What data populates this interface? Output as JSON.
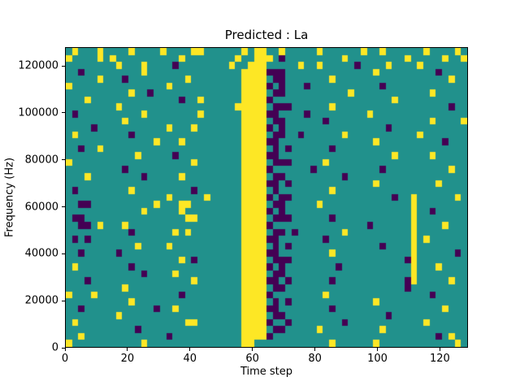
{
  "chart_data": {
    "type": "heatmap",
    "title": "Predicted : La",
    "xlabel": "Time step",
    "ylabel": "Frequency (Hz)",
    "xlim": [
      0,
      129
    ],
    "ylim": [
      0,
      128000
    ],
    "x_ticks": [
      0,
      20,
      40,
      60,
      80,
      100,
      120
    ],
    "y_ticks": [
      0,
      20000,
      40000,
      60000,
      80000,
      100000,
      120000
    ],
    "colormap": "viridis",
    "legend": "none",
    "grid": {
      "shape": {
        "rows": 43,
        "cols": 64
      },
      "cell_time_steps": 2,
      "cell_freq_hz": 2977,
      "encoding": {
        ".": "mid",
        "y": "high",
        "p": "low"
      },
      "colors": {
        "mid": "#21918c",
        "high": "#fde725",
        "low": "#440154"
      },
      "rows_top_to_bottom": [
        [
          ".y...y..",
          "..y....y",
          "....yy..",
          "....y.yy",
          "..y.....",
          "y......y",
          "..y.....",
          ".y....y."
        ],
        [
          "y....y.y",
          "........",
          "..y.....",
          "...y..yy",
          "y.p.....",
          "....y...",
          "......y.",
          "....y..y"
        ],
        [
          "........",
          "y...y...",
          ".p......",
          "..y..yyy",
          ".....y..",
          "y.....p.",
          "...y....",
          "y......."
        ],
        [
          "..p.....",
          "....y...",
          "........",
          "....yyyy",
          "ppp.....",
          "........",
          ".y......",
          "...p...."
        ],
        [
          ".....y..",
          ".p......",
          "...y....",
          "....yyyy",
          ".pp.....",
          "..y.....",
          "........",
          ".....y.."
        ],
        [
          "y.......",
          "........",
          "y.......",
          "....yyyy",
          "p.p...p.",
          "........",
          "..p.....",
          "........"
        ],
        [
          "........",
          "..y..p..",
          "........",
          "....yyyy",
          ".pp.....",
          ".....y..",
          "........",
          "..y....."
        ],
        [
          "...y....",
          "........",
          "..p..y..",
          "....yyyy",
          "p.......",
          "........",
          "....y...",
          "........"
        ],
        [
          "........",
          "y.......",
          "........",
          "...yyyyy",
          ".ppp....",
          "..y.....",
          "........",
          ".....p.."
        ],
        [
          ".p......",
          "....y...",
          ".....y..",
          "....yyyy",
          "pp....p.",
          "........",
          "y.......",
          "........"
        ],
        [
          "........",
          ".y......",
          "........",
          "....yyyy",
          ".pp.....",
          ".p......",
          "........",
          "..y....y"
        ],
        [
          "....p...",
          "........",
          "y...y...",
          "....yyyy",
          "p.p.....",
          "........",
          "...p....",
          "........"
        ],
        [
          ".y......",
          "..p.....",
          "........",
          "....yyyy",
          ".pp..p..",
          "....y...",
          "........",
          "y......."
        ],
        [
          "........",
          "......y.",
          "..y.....",
          "....yyyy",
          "pp......",
          "........",
          ".y......",
          "....p..."
        ],
        [
          "..p..y..",
          "........",
          "........",
          "....yyyy",
          ".p.p....",
          "..p.....",
          "........",
          "........"
        ],
        [
          "........",
          "...y....",
          ".p......",
          "....yyyy",
          "pp......",
          "........",
          "....y...",
          "..y....."
        ],
        [
          "y.......",
          "........",
          "....y...",
          "....yyyy",
          ".ppp....",
          ".y......",
          "........",
          "........"
        ],
        [
          "........",
          ".p......",
          "........",
          "....yyyy",
          "p......p",
          "........",
          "..p.....",
          ".....y.."
        ],
        [
          "...y....",
          "....p...",
          "..y.....",
          "....yyyy",
          ".pp.....",
          "....p...",
          "........",
          "........"
        ],
        [
          "........",
          "........",
          "........",
          "....yyyy",
          "pp.p....",
          "........",
          ".y......",
          "...y...."
        ],
        [
          ".p......",
          "..y.....",
          "....p...",
          "....yyyy",
          ".p......",
          "..y.....",
          "........",
          "........"
        ],
        [
          "........",
          "........",
          "y.....y.",
          "....yyyy",
          "p.pp....",
          "........",
          "....p..y",
          "......y."
        ],
        [
          "..pp....",
          "......y.",
          "..yy....",
          "....yyyy",
          ".pp.....",
          "y.......",
          ".......y",
          "........"
        ],
        [
          "........",
          "....y...",
          "..y.....",
          "....yyyy",
          "p.p.....",
          "........",
          ".......y",
          "..p....."
        ],
        [
          ".pp.....",
          "........",
          "...yy...",
          "....yyyy",
          ".ppp....",
          "..p.....",
          ".......y",
          "........"
        ],
        [
          "..pp.y..",
          ".y......",
          "........",
          "....yyyy",
          "p.......",
          "........",
          "p......y",
          "....y..."
        ],
        [
          "........",
          "..p.....",
          ".y.y....",
          "....yyyy",
          ".pp.p...",
          "....y...",
          ".......y",
          "........"
        ],
        [
          ".p.p....",
          "........",
          "........",
          "....yyyy",
          "pp......",
          ".p......",
          ".......y",
          ".y......"
        ],
        [
          "........",
          "...y....",
          "y.......",
          "....yyyy",
          ".p.p....",
          "........",
          "..p....y",
          "........"
        ],
        [
          "..p.....",
          "p.......",
          "........",
          "....yyyy",
          "pp......",
          "..y.....",
          ".......y",
          "......p."
        ],
        [
          "........",
          "........",
          "..y.p...",
          "....yyyy",
          ".ppp....",
          "........",
          "......py",
          "........"
        ],
        [
          ".y......",
          "..p.....",
          "........",
          "....yyyy",
          "p.p.....",
          "...p....",
          ".......y",
          "...y...."
        ],
        [
          "........",
          "....p...",
          ".y......",
          "....yyyy",
          ".pp.....",
          "........",
          ".......y",
          "........"
        ],
        [
          "...p....",
          "........",
          "....y...",
          "....yyyy",
          "pp.p....",
          "..p.....",
          "......py",
          ".....y.."
        ],
        [
          "........",
          ".y......",
          "........",
          "....yyyy",
          ".pp.....",
          "........",
          "......p.",
          "........"
        ],
        [
          "y...y...",
          "........",
          "..p.....",
          "....yyyy",
          "p.......",
          ".y......",
          "........",
          "..p....."
        ],
        [
          "........",
          "..y.....",
          "........",
          "....yyyy",
          ".p.p....",
          "........",
          ".y......",
          "........"
        ],
        [
          "..p.....",
          "......p.",
          ".y......",
          "....yyyy",
          "pp......",
          "..p.....",
          "........",
          "....y..."
        ],
        [
          "........",
          "y.......",
          "........",
          "....yyyy",
          ".pp.....",
          "........",
          "...p....",
          "........"
        ],
        [
          ".y......",
          "........",
          "...yy...",
          "....yyyy",
          "p..p....",
          "....p...",
          "........",
          ".y......"
        ],
        [
          "........",
          "...p....",
          "........",
          "....yyyy",
          ".pp.....",
          "y.......",
          "..y.....",
          "........"
        ],
        [
          "..y.....",
          "........",
          "p.......",
          "....yyyy",
          "p.......",
          "........",
          "........",
          "...p.y.."
        ],
        [
          "y.......",
          "....y...",
          "........",
          "....yy..",
          "........",
          "..y.....",
          ".y......",
          "......y."
        ]
      ]
    }
  }
}
